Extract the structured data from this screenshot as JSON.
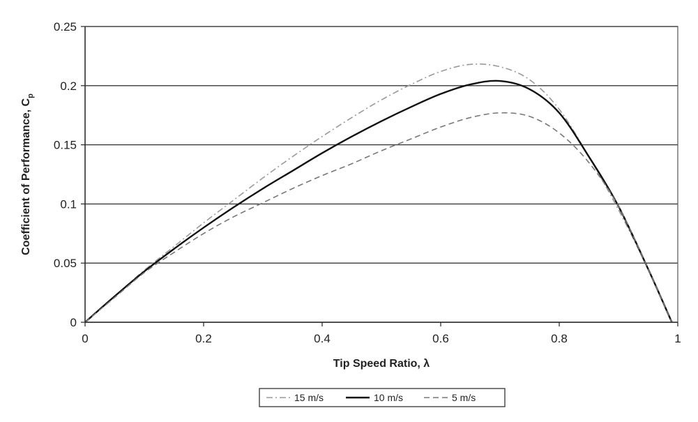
{
  "chart_data": {
    "type": "line",
    "xlabel": "Tip Speed Ratio, λ",
    "ylabel_main": "Coefficient of Performance, C",
    "ylabel_sub": "p",
    "xlim": [
      0,
      1
    ],
    "ylim": [
      0,
      0.25
    ],
    "x_ticks": [
      "0",
      "0.2",
      "0.4",
      "0.6",
      "0.8",
      "1"
    ],
    "y_ticks": [
      "0",
      "0.05",
      "0.1",
      "0.15",
      "0.2",
      "0.25"
    ],
    "grid": "horizontal",
    "legend_position": "bottom",
    "series": [
      {
        "name": "15 m/s",
        "style": "dash-dot",
        "color": "#9a9a9a",
        "x": [
          0,
          0.05,
          0.1,
          0.15,
          0.2,
          0.25,
          0.3,
          0.35,
          0.4,
          0.45,
          0.5,
          0.55,
          0.6,
          0.65,
          0.7,
          0.75,
          0.8,
          0.85,
          0.9,
          0.95,
          0.99
        ],
        "y": [
          0,
          0.022,
          0.044,
          0.064,
          0.084,
          0.103,
          0.122,
          0.14,
          0.157,
          0.173,
          0.188,
          0.201,
          0.212,
          0.218,
          0.216,
          0.205,
          0.18,
          0.14,
          0.095,
          0.045,
          0
        ]
      },
      {
        "name": "10 m/s",
        "style": "solid",
        "color": "#111111",
        "x": [
          0,
          0.05,
          0.1,
          0.15,
          0.2,
          0.25,
          0.3,
          0.35,
          0.4,
          0.45,
          0.5,
          0.55,
          0.6,
          0.65,
          0.7,
          0.75,
          0.8,
          0.85,
          0.9,
          0.95,
          0.99
        ],
        "y": [
          0,
          0.022,
          0.043,
          0.062,
          0.08,
          0.097,
          0.113,
          0.128,
          0.143,
          0.157,
          0.17,
          0.182,
          0.193,
          0.201,
          0.204,
          0.197,
          0.177,
          0.14,
          0.098,
          0.045,
          0
        ]
      },
      {
        "name": "5 m/s",
        "style": "dashed",
        "color": "#777777",
        "x": [
          0,
          0.05,
          0.1,
          0.15,
          0.2,
          0.25,
          0.3,
          0.35,
          0.4,
          0.45,
          0.5,
          0.55,
          0.6,
          0.65,
          0.7,
          0.75,
          0.8,
          0.85,
          0.9,
          0.95,
          0.99
        ],
        "y": [
          0,
          0.021,
          0.042,
          0.059,
          0.075,
          0.089,
          0.101,
          0.113,
          0.124,
          0.134,
          0.145,
          0.155,
          0.165,
          0.173,
          0.177,
          0.174,
          0.16,
          0.135,
          0.098,
          0.045,
          0
        ]
      }
    ]
  }
}
